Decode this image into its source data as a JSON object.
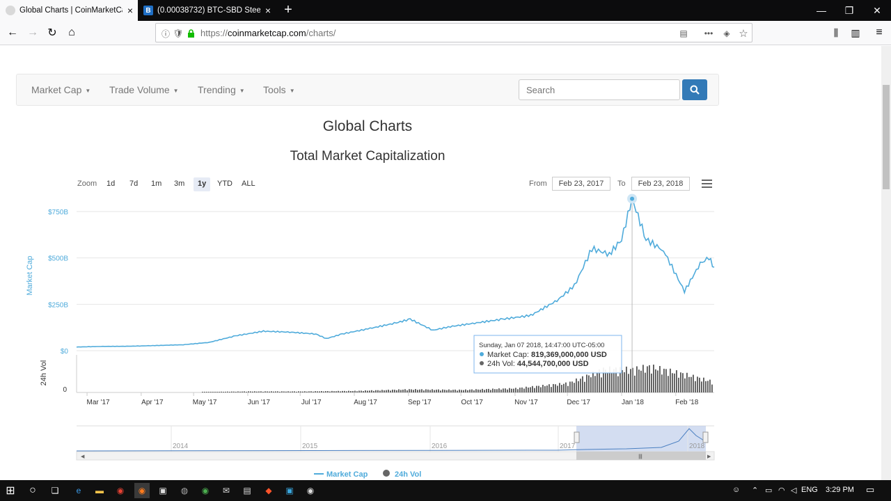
{
  "browser": {
    "tabs": [
      {
        "title": "Global Charts | CoinMarketCap",
        "favicon": "coinmarketcap-icon",
        "close": "×"
      },
      {
        "title": "(0.00038732) BTC-SBD SteemDo",
        "favicon": "B",
        "close": "×"
      }
    ],
    "new_tab": "+",
    "window_controls": {
      "minimize": "—",
      "maximize": "❐",
      "close": "✕"
    },
    "nav": {
      "back": "←",
      "forward": "→",
      "reload": "↻",
      "home": "⌂"
    },
    "url": {
      "prefix": "https://",
      "domain": "coinmarketcap.com",
      "path": "/charts/"
    },
    "urlbar_icons": {
      "info": "ⓘ",
      "tracking": "🛡",
      "reader": "▤",
      "more": "•••",
      "pocket": "◈",
      "bookmark": "☆"
    },
    "toolbar_icons": {
      "library": "⫼",
      "sidebar": "▥",
      "menu": "≡"
    }
  },
  "site_nav": {
    "items": [
      "Market Cap",
      "Trade Volume",
      "Trending",
      "Tools"
    ],
    "caret": "▼",
    "search_placeholder": "Search"
  },
  "page": {
    "title": "Global Charts",
    "chart_title": "Total Market Capitalization"
  },
  "zoom": {
    "label": "Zoom",
    "buttons": [
      "1d",
      "7d",
      "1m",
      "3m",
      "1y",
      "YTD",
      "ALL"
    ],
    "selected": "1y"
  },
  "range": {
    "from_label": "From",
    "from": "Feb 23, 2017",
    "to_label": "To",
    "to": "Feb 23, 2018"
  },
  "tooltip": {
    "date": "Sunday, Jan 07 2018, 14:47:00 UTC-05:00",
    "mcap_label": "Market Cap:",
    "mcap_value": "819,369,000,000 USD",
    "vol_label": "24h Vol:",
    "vol_value": "44,544,700,000 USD"
  },
  "navigator": {
    "years": [
      "2014",
      "2015",
      "2016",
      "2017",
      "2018"
    ],
    "handle": "|||"
  },
  "legend": [
    {
      "name": "Market Cap",
      "color": "#4fabdb"
    },
    {
      "name": "24h Vol",
      "color": "#666666"
    }
  ],
  "chart_data": {
    "type": "line",
    "title": "Total Market Capitalization",
    "ylabel": "Market Cap",
    "ylabel2": "24h Vol",
    "yticks": [
      "$0",
      "$250B",
      "$500B",
      "$750B"
    ],
    "ylim": [
      0,
      900
    ],
    "y2ticks": [
      "0"
    ],
    "xticks": [
      "Mar '17",
      "Apr '17",
      "May '17",
      "Jun '17",
      "Jul '17",
      "Aug '17",
      "Sep '17",
      "Oct '17",
      "Nov '17",
      "Dec '17",
      "Jan '18",
      "Feb '18"
    ],
    "series": [
      {
        "name": "Market Cap",
        "color": "#4fabdb",
        "unit": "billion USD",
        "points": [
          [
            "2017-02-23",
            20
          ],
          [
            "2017-03-10",
            23
          ],
          [
            "2017-03-25",
            24
          ],
          [
            "2017-04-10",
            28
          ],
          [
            "2017-04-25",
            32
          ],
          [
            "2017-05-10",
            45
          ],
          [
            "2017-05-25",
            80
          ],
          [
            "2017-06-10",
            105
          ],
          [
            "2017-06-25",
            100
          ],
          [
            "2017-07-10",
            90
          ],
          [
            "2017-07-16",
            65
          ],
          [
            "2017-07-25",
            90
          ],
          [
            "2017-08-10",
            120
          ],
          [
            "2017-08-25",
            150
          ],
          [
            "2017-09-02",
            170
          ],
          [
            "2017-09-15",
            110
          ],
          [
            "2017-09-25",
            130
          ],
          [
            "2017-10-10",
            150
          ],
          [
            "2017-10-25",
            170
          ],
          [
            "2017-11-10",
            190
          ],
          [
            "2017-11-25",
            270
          ],
          [
            "2017-12-05",
            350
          ],
          [
            "2017-12-15",
            550
          ],
          [
            "2017-12-25",
            520
          ],
          [
            "2018-01-01",
            600
          ],
          [
            "2018-01-07",
            819
          ],
          [
            "2018-01-15",
            600
          ],
          [
            "2018-01-25",
            540
          ],
          [
            "2018-02-06",
            320
          ],
          [
            "2018-02-15",
            470
          ],
          [
            "2018-02-20",
            500
          ],
          [
            "2018-02-23",
            450
          ]
        ]
      },
      {
        "name": "24h Vol",
        "color": "#666666",
        "unit": "billion USD",
        "points": [
          [
            "2017-03-01",
            0.3
          ],
          [
            "2017-05-01",
            0.8
          ],
          [
            "2017-06-01",
            2
          ],
          [
            "2017-07-01",
            2
          ],
          [
            "2017-08-01",
            3
          ],
          [
            "2017-09-01",
            6
          ],
          [
            "2017-10-01",
            5
          ],
          [
            "2017-11-01",
            8
          ],
          [
            "2017-12-01",
            18
          ],
          [
            "2017-12-22",
            45
          ],
          [
            "2018-01-07",
            44.5
          ],
          [
            "2018-01-17",
            50
          ],
          [
            "2018-02-06",
            35
          ],
          [
            "2018-02-23",
            20
          ]
        ]
      }
    ]
  },
  "taskbar": {
    "start": "⊞",
    "search": "○",
    "taskview": "❏",
    "apps": [
      "e",
      "▬",
      "◉",
      "◉",
      "▣",
      "◍",
      "◉",
      "✉",
      "▤",
      "◆",
      "▣",
      "◉"
    ],
    "tray_lang": "ENG",
    "time": "3:29 PM"
  }
}
